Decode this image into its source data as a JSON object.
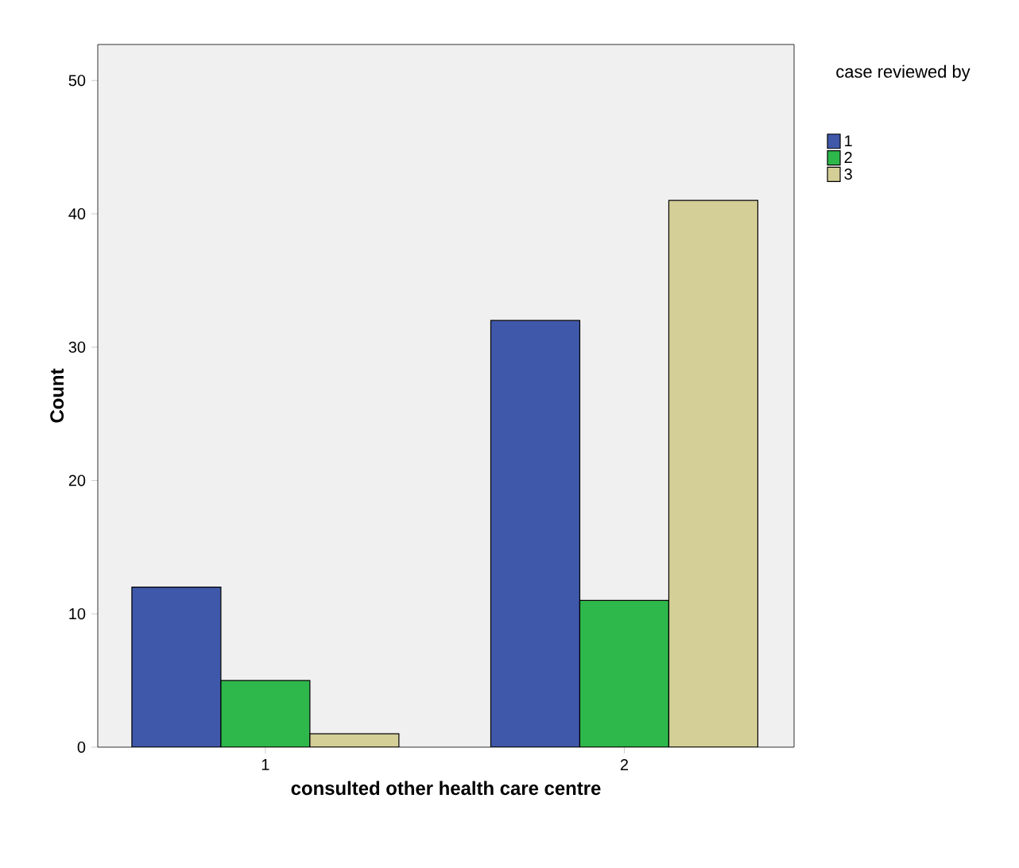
{
  "chart_data": {
    "type": "bar",
    "xlabel": "consulted other health care centre",
    "ylabel": "Count",
    "legend_title": "case reviewed by",
    "categories": [
      "1",
      "2"
    ],
    "series": [
      {
        "name": "1",
        "color": "#3f58a9",
        "values": [
          12,
          32
        ]
      },
      {
        "name": "2",
        "color": "#2eb84b",
        "values": [
          5,
          11
        ]
      },
      {
        "name": "3",
        "color": "#d4ce97",
        "values": [
          1,
          41
        ]
      }
    ],
    "ylim": [
      0,
      52.7
    ],
    "yticks": [
      0,
      10,
      20,
      30,
      40,
      50
    ],
    "grid": false,
    "legend": "top right"
  }
}
